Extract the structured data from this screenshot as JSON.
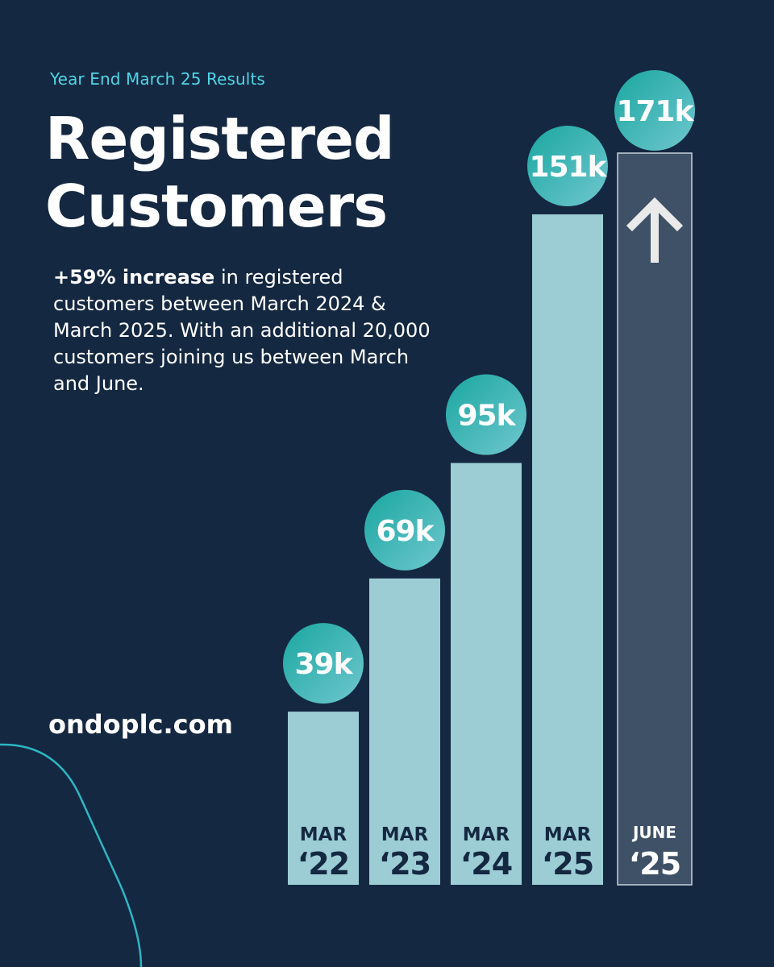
{
  "eyebrow": "Year End March 25 Results",
  "title_line1": "Registered",
  "title_line2": "Customers",
  "description": {
    "highlight": "+59% increase",
    "text": " in registered customers between March 2024 & March 2025. With an additional 20,000 customers joining us between March and June."
  },
  "website": "ondoplc.com",
  "colors": {
    "background": "#152841",
    "bar": "#9ccdd5",
    "projected_bar": "#3e5166",
    "bubble_start": "#1aa7a0",
    "bubble_end": "#6fc7cf",
    "accent": "#4fd6e6"
  },
  "icons": {
    "projected_marker": "arrow-up-icon"
  },
  "chart_data": {
    "type": "bar",
    "title": "Registered Customers",
    "categories": [
      {
        "month": "MAR",
        "year": "‘22"
      },
      {
        "month": "MAR",
        "year": "‘23"
      },
      {
        "month": "MAR",
        "year": "‘24"
      },
      {
        "month": "MAR",
        "year": "‘25"
      },
      {
        "month": "JUNE",
        "year": "‘25"
      }
    ],
    "values": [
      39,
      69,
      95,
      151,
      171
    ],
    "value_labels": [
      "39k",
      "69k",
      "95k",
      "151k",
      "171k"
    ],
    "unit": "thousand customers",
    "highlighted_index": 4,
    "grid": false,
    "legend": "none"
  }
}
